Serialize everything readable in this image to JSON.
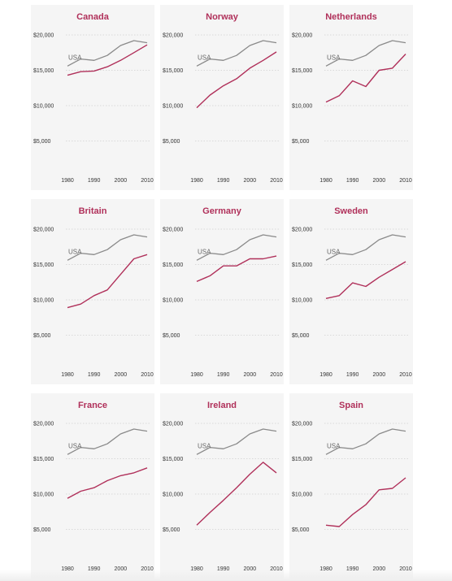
{
  "colors": {
    "country": "#b0305a",
    "usa": "#8a8a8a",
    "panel_bg": "#f5f5f5",
    "grid": "#cfcfcf",
    "title": "#b0305a"
  },
  "chart_data": [
    {
      "type": "line",
      "title": "Canada",
      "x": [
        1980,
        1985,
        1990,
        1995,
        2000,
        2005,
        2010
      ],
      "xticks": [
        1980,
        1990,
        2000,
        2010
      ],
      "yticks": [
        5000,
        10000,
        15000,
        20000
      ],
      "ytick_labels": [
        "$5,000",
        "$10,000",
        "$15,000",
        "$20,000"
      ],
      "ylim": [
        0,
        20000
      ],
      "grid": true,
      "series": [
        {
          "name": "USA",
          "values": [
            15600,
            16600,
            16400,
            17100,
            18500,
            19200,
            18900
          ]
        },
        {
          "name": "",
          "values": [
            14300,
            14800,
            14900,
            15500,
            16400,
            17500,
            18600
          ]
        }
      ]
    },
    {
      "type": "line",
      "title": "Norway",
      "x": [
        1980,
        1985,
        1990,
        1995,
        2000,
        2005,
        2010
      ],
      "xticks": [
        1980,
        1990,
        2000,
        2010
      ],
      "yticks": [
        5000,
        10000,
        15000,
        20000
      ],
      "ytick_labels": [
        "$5,000",
        "$10,000",
        "$15,000",
        "$20,000"
      ],
      "ylim": [
        0,
        20000
      ],
      "grid": true,
      "series": [
        {
          "name": "USA",
          "values": [
            15600,
            16600,
            16400,
            17100,
            18500,
            19200,
            18900
          ]
        },
        {
          "name": "",
          "values": [
            9700,
            11500,
            12800,
            13800,
            15300,
            16400,
            17600
          ]
        }
      ]
    },
    {
      "type": "line",
      "title": "Netherlands",
      "x": [
        1980,
        1985,
        1990,
        1995,
        2000,
        2005,
        2010
      ],
      "xticks": [
        1980,
        1990,
        2000,
        2010
      ],
      "yticks": [
        5000,
        10000,
        15000,
        20000
      ],
      "ytick_labels": [
        "$5,000",
        "$10,000",
        "$15,000",
        "$20,000"
      ],
      "ylim": [
        0,
        20000
      ],
      "grid": true,
      "series": [
        {
          "name": "USA",
          "values": [
            15600,
            16600,
            16400,
            17100,
            18500,
            19200,
            18900
          ]
        },
        {
          "name": "",
          "values": [
            10500,
            11400,
            13500,
            12700,
            15000,
            15300,
            17300
          ]
        }
      ]
    },
    {
      "type": "line",
      "title": "Britain",
      "x": [
        1980,
        1985,
        1990,
        1995,
        2000,
        2005,
        2010
      ],
      "xticks": [
        1980,
        1990,
        2000,
        2010
      ],
      "yticks": [
        5000,
        10000,
        15000,
        20000
      ],
      "ytick_labels": [
        "$5,000",
        "$10,000",
        "$15,000",
        "$20,000"
      ],
      "ylim": [
        0,
        20000
      ],
      "grid": true,
      "series": [
        {
          "name": "USA",
          "values": [
            15600,
            16600,
            16400,
            17100,
            18500,
            19200,
            18900
          ]
        },
        {
          "name": "",
          "values": [
            8900,
            9400,
            10600,
            11400,
            13600,
            15800,
            16400
          ]
        }
      ]
    },
    {
      "type": "line",
      "title": "Germany",
      "x": [
        1980,
        1985,
        1990,
        1995,
        2000,
        2005,
        2010
      ],
      "xticks": [
        1980,
        1990,
        2000,
        2010
      ],
      "yticks": [
        5000,
        10000,
        15000,
        20000
      ],
      "ytick_labels": [
        "$5,000",
        "$10,000",
        "$15,000",
        "$20,000"
      ],
      "ylim": [
        0,
        20000
      ],
      "grid": true,
      "series": [
        {
          "name": "USA",
          "values": [
            15600,
            16600,
            16400,
            17100,
            18500,
            19200,
            18900
          ]
        },
        {
          "name": "",
          "values": [
            12600,
            13400,
            14800,
            14800,
            15800,
            15800,
            16200
          ]
        }
      ]
    },
    {
      "type": "line",
      "title": "Sweden",
      "x": [
        1980,
        1985,
        1990,
        1995,
        2000,
        2005,
        2010
      ],
      "xticks": [
        1980,
        1990,
        2000,
        2010
      ],
      "yticks": [
        5000,
        10000,
        15000,
        20000
      ],
      "ytick_labels": [
        "$5,000",
        "$10,000",
        "$15,000",
        "$20,000"
      ],
      "ylim": [
        0,
        20000
      ],
      "grid": true,
      "series": [
        {
          "name": "USA",
          "values": [
            15600,
            16600,
            16400,
            17100,
            18500,
            19200,
            18900
          ]
        },
        {
          "name": "",
          "values": [
            10200,
            10600,
            12400,
            11900,
            13200,
            14300,
            15400
          ]
        }
      ]
    },
    {
      "type": "line",
      "title": "France",
      "x": [
        1980,
        1985,
        1990,
        1995,
        2000,
        2005,
        2010
      ],
      "xticks": [
        1980,
        1990,
        2000,
        2010
      ],
      "yticks": [
        5000,
        10000,
        15000,
        20000
      ],
      "ytick_labels": [
        "$5,000",
        "$10,000",
        "$15,000",
        "$20,000"
      ],
      "ylim": [
        0,
        20000
      ],
      "grid": true,
      "series": [
        {
          "name": "USA",
          "values": [
            15600,
            16600,
            16400,
            17100,
            18500,
            19200,
            18900
          ]
        },
        {
          "name": "",
          "values": [
            9400,
            10400,
            10900,
            11900,
            12600,
            13000,
            13700
          ]
        }
      ]
    },
    {
      "type": "line",
      "title": "Ireland",
      "x": [
        1980,
        1985,
        1990,
        1995,
        2000,
        2005,
        2010
      ],
      "xticks": [
        1980,
        1990,
        2000,
        2010
      ],
      "yticks": [
        5000,
        10000,
        15000,
        20000
      ],
      "ytick_labels": [
        "$5,000",
        "$10,000",
        "$15,000",
        "$20,000"
      ],
      "ylim": [
        0,
        20000
      ],
      "grid": true,
      "series": [
        {
          "name": "USA",
          "values": [
            15600,
            16600,
            16400,
            17100,
            18500,
            19200,
            18900
          ]
        },
        {
          "name": "",
          "values": [
            5600,
            7400,
            9100,
            10900,
            12800,
            14500,
            13000
          ]
        }
      ]
    },
    {
      "type": "line",
      "title": "Spain",
      "x": [
        1980,
        1985,
        1990,
        1995,
        2000,
        2005,
        2010
      ],
      "xticks": [
        1980,
        1990,
        2000,
        2010
      ],
      "yticks": [
        5000,
        10000,
        15000,
        20000
      ],
      "ytick_labels": [
        "$5,000",
        "$10,000",
        "$15,000",
        "$20,000"
      ],
      "ylim": [
        0,
        20000
      ],
      "grid": true,
      "series": [
        {
          "name": "USA",
          "values": [
            15600,
            16600,
            16400,
            17100,
            18500,
            19200,
            18900
          ]
        },
        {
          "name": "",
          "values": [
            5600,
            5400,
            7100,
            8500,
            10600,
            10800,
            12300
          ]
        }
      ]
    }
  ]
}
